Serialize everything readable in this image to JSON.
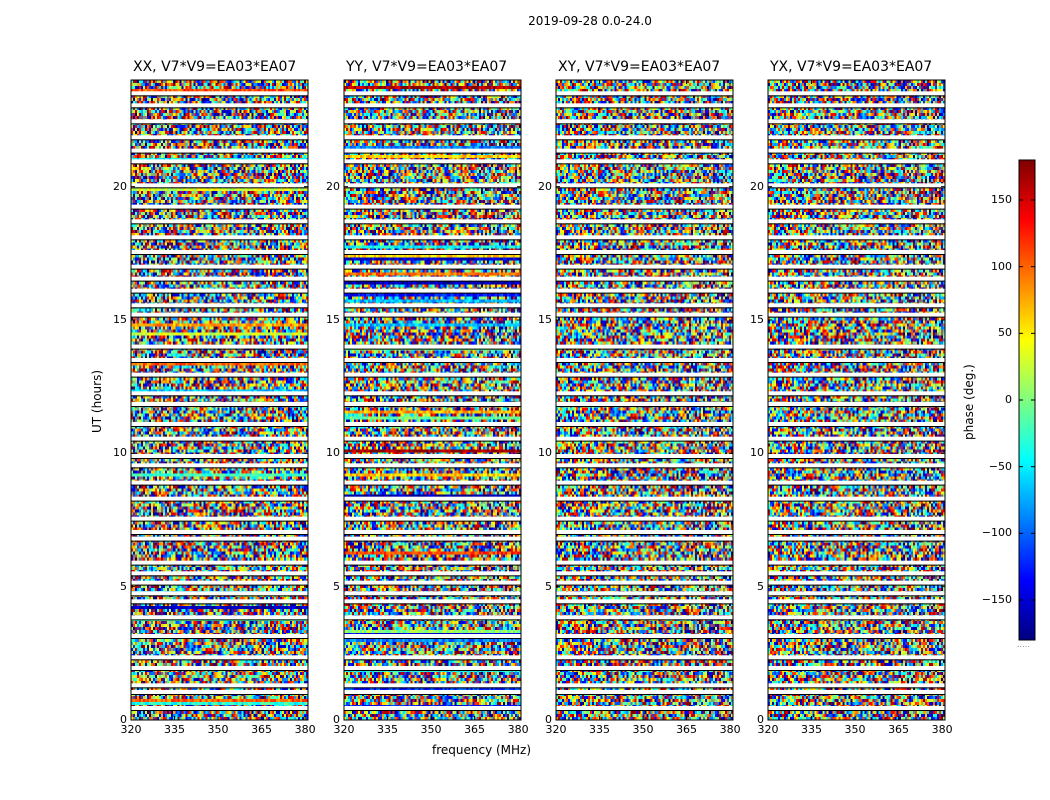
{
  "chart_data": {
    "type": "heatmap",
    "title": "2019-09-28 0.0-24.0",
    "xlabel": "frequency (MHz)",
    "ylabel": "UT (hours)",
    "xlim": [
      320,
      381
    ],
    "ylim": [
      0,
      24
    ],
    "x_ticks": [
      "320",
      "335",
      "350",
      "365",
      "380"
    ],
    "x_tick_values": [
      320,
      335,
      350,
      365,
      380
    ],
    "y_ticks": [
      "0",
      "5",
      "10",
      "15",
      "20"
    ],
    "y_tick_values": [
      0,
      5,
      10,
      15,
      20
    ],
    "panels": [
      {
        "title": "XX, V7*V9=EA03*EA07",
        "polarization": "XX"
      },
      {
        "title": "YY, V7*V9=EA03*EA07",
        "polarization": "YY"
      },
      {
        "title": "XY, V7*V9=EA03*EA07",
        "polarization": "XY"
      },
      {
        "title": "YX, V7*V9=EA03*EA07",
        "polarization": "YX"
      }
    ],
    "flagged_white_rows_hours": [
      0.45,
      1.05,
      1.3,
      1.95,
      2.35,
      3.15,
      3.85,
      4.45,
      4.75,
      5.15,
      5.5,
      5.9,
      6.8,
      7.05,
      7.55,
      8.3,
      8.9,
      9.55,
      9.9,
      10.55,
      11.1,
      11.85,
      12.25,
      12.95,
      13.5,
      14.0,
      15.2,
      15.55,
      16.1,
      16.55,
      17.0,
      17.55,
      18.1,
      18.7,
      19.25,
      20.05,
      20.95,
      21.35,
      21.85,
      22.45,
      23.05,
      23.5
    ],
    "colorbar": {
      "label": "phase (deg.)",
      "range": [
        -180,
        180
      ],
      "ticks": [
        "150",
        "100",
        "50",
        "0",
        "−50",
        "−100",
        "−150"
      ],
      "tick_values": [
        150,
        100,
        50,
        0,
        -50,
        -100,
        -150
      ],
      "colormap": "jet",
      "colors": [
        "#00007f",
        "#0000ff",
        "#007fff",
        "#00ffff",
        "#7fff7f",
        "#ffff00",
        "#ff7f00",
        "#ff0000",
        "#7f0000"
      ]
    }
  }
}
